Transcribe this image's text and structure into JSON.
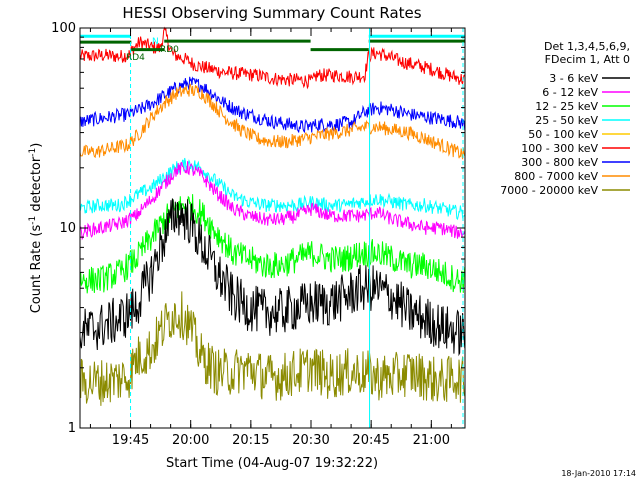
{
  "chart_data": {
    "type": "line",
    "title": "HESSI Observing Summary Count Rates",
    "xlabel": "Start Time (04-Aug-07 19:32:22)",
    "ylabel_main": "Count Rate (s",
    "ylabel_sup1": "-1",
    "ylabel_mid": " detector",
    "ylabel_sup2": "-1",
    "ylabel_end": ")",
    "y_scale": "log",
    "ylim": [
      1,
      100
    ],
    "xlim_minutes": [
      0,
      96
    ],
    "x_ticks": [
      {
        "label": "19:45",
        "minute": 12.6
      },
      {
        "label": "20:00",
        "minute": 27.6
      },
      {
        "label": "20:15",
        "minute": 42.6
      },
      {
        "label": "20:30",
        "minute": 57.6
      },
      {
        "label": "20:45",
        "minute": 72.6
      },
      {
        "label": "21:00",
        "minute": 87.6
      }
    ],
    "y_tick_labels": [
      {
        "label": "1",
        "value": 1
      },
      {
        "label": "10",
        "value": 10
      },
      {
        "label": "100",
        "value": 100
      }
    ],
    "legend": {
      "placement": "right",
      "header": [
        "Det 1,3,4,5,6,9,",
        "FDecim 1, Att 0"
      ],
      "entries": [
        {
          "label": "3 - 6 keV",
          "color": "#000000"
        },
        {
          "label": "6 - 12 keV",
          "color": "#ff00ff"
        },
        {
          "label": "12 - 25 keV",
          "color": "#00ff00"
        },
        {
          "label": "25 - 50 keV",
          "color": "#00ffff"
        },
        {
          "label": "50 - 100 keV",
          "color": "#ffcc00"
        },
        {
          "label": "100 - 300 keV",
          "color": "#ff0000"
        },
        {
          "label": "300 - 800 keV",
          "color": "#0000ff"
        },
        {
          "label": "800 - 7000 keV",
          "color": "#ff8c00"
        },
        {
          "label": "7000 - 20000 keV",
          "color": "#8b8b00"
        }
      ]
    },
    "annotations": {
      "flags": [
        {
          "label": "N",
          "color": "#00ffff"
        },
        {
          "label": "RD0",
          "color": "#006400"
        },
        {
          "label": "RD4",
          "color": "#006400"
        }
      ],
      "timestamp": "18-Jan-2010 17:14"
    },
    "series": [
      {
        "name": "100 - 300 keV",
        "color": "#ff0000",
        "x": [
          0,
          6,
          10,
          12.5,
          13,
          15,
          18,
          20,
          21,
          23,
          26,
          29,
          33,
          36,
          40,
          44,
          48,
          52,
          55,
          58,
          59,
          64,
          68,
          71,
          72,
          74,
          76,
          80,
          84,
          88,
          92,
          96
        ],
        "y": [
          72,
          73,
          72,
          74,
          78,
          85,
          80,
          79,
          96,
          74,
          70,
          65,
          62,
          60,
          59,
          58,
          56,
          55,
          55,
          54,
          58,
          58,
          57,
          58,
          73,
          75,
          73,
          68,
          65,
          62,
          58,
          55
        ]
      },
      {
        "name": "300 - 800 keV",
        "color": "#0000ff",
        "x": [
          0,
          4,
          8,
          12,
          15,
          18,
          21,
          24,
          27,
          30,
          33,
          36,
          40,
          44,
          48,
          52,
          56,
          60,
          64,
          68,
          71,
          74,
          78,
          82,
          86,
          90,
          94,
          96
        ],
        "y": [
          34,
          35,
          36,
          37,
          39,
          42,
          46,
          50,
          53,
          52,
          47,
          42,
          38,
          36,
          34,
          33,
          32,
          33,
          33,
          34,
          38,
          40,
          39,
          37,
          36,
          35,
          34,
          33
        ]
      },
      {
        "name": "800 - 7000 keV",
        "color": "#ff8c00",
        "x": [
          0,
          4,
          8,
          12,
          15,
          18,
          21,
          24,
          27,
          30,
          33,
          36,
          40,
          44,
          48,
          52,
          56,
          60,
          64,
          68,
          71,
          74,
          78,
          82,
          86,
          90,
          94,
          96
        ],
        "y": [
          24,
          24,
          25,
          26,
          30,
          36,
          42,
          47,
          49,
          48,
          42,
          36,
          31,
          28,
          27,
          27,
          28,
          29,
          30,
          31,
          32,
          32,
          31,
          30,
          28,
          26,
          24,
          23
        ]
      },
      {
        "name": "25 - 50 keV",
        "color": "#00ffff",
        "x": [
          0,
          5,
          10,
          14,
          18,
          21,
          24,
          27,
          30,
          34,
          38,
          42,
          46,
          50,
          54,
          58,
          62,
          66,
          70,
          74,
          78,
          82,
          86,
          90,
          94,
          96
        ],
        "y": [
          12.5,
          13,
          13,
          14.5,
          16,
          18,
          20,
          21,
          20,
          17,
          14.5,
          13.5,
          13,
          13,
          13,
          13.5,
          13,
          13,
          13.5,
          14,
          13.5,
          13,
          13,
          12.5,
          12,
          12
        ]
      },
      {
        "name": "6 - 12 keV",
        "color": "#ff00ff",
        "x": [
          0,
          5,
          10,
          14,
          18,
          21,
          24,
          27,
          30,
          34,
          38,
          42,
          46,
          50,
          54,
          58,
          62,
          66,
          70,
          74,
          78,
          82,
          86,
          90,
          94,
          96
        ],
        "y": [
          9.5,
          10,
          10.5,
          11.5,
          14,
          16.5,
          19.5,
          20,
          18.5,
          15,
          12.5,
          11.5,
          11,
          11,
          11.5,
          12.5,
          11.5,
          11.5,
          11.5,
          12,
          11,
          10.5,
          10,
          10,
          9.5,
          9.5
        ]
      },
      {
        "name": "12 - 25 keV",
        "color": "#00ff00",
        "x": [
          0,
          5,
          10,
          14,
          18,
          21,
          24,
          27,
          30,
          34,
          38,
          42,
          46,
          50,
          54,
          58,
          62,
          66,
          70,
          74,
          78,
          82,
          86,
          90,
          94,
          96
        ],
        "y": [
          5.5,
          5.5,
          6,
          7,
          9,
          11,
          12.5,
          13,
          12,
          9.5,
          7.5,
          7,
          6.5,
          6.5,
          7,
          7.5,
          7,
          7,
          7.5,
          7.5,
          7,
          6.5,
          6.5,
          6,
          5.5,
          5.5
        ]
      },
      {
        "name": "3 - 6 keV",
        "color": "#000000",
        "x": [
          0,
          5,
          10,
          14,
          18,
          21,
          24,
          27,
          30,
          34,
          38,
          42,
          46,
          50,
          54,
          58,
          62,
          66,
          70,
          74,
          78,
          82,
          86,
          90,
          94,
          96
        ],
        "y": [
          3,
          3.2,
          3.5,
          4,
          6,
          9,
          12,
          11,
          8.5,
          6,
          4.5,
          4,
          3.8,
          3.8,
          4,
          4.2,
          4.2,
          4.5,
          5,
          5,
          4.5,
          3.8,
          3.5,
          3.2,
          3,
          3
        ]
      },
      {
        "name": "7000 - 20000 keV",
        "color": "#8b8b00",
        "x": [
          0,
          6,
          12,
          14,
          18,
          20,
          22,
          24,
          26,
          28,
          30,
          34,
          38,
          42,
          46,
          50,
          54,
          58,
          62,
          66,
          70,
          74,
          78,
          82,
          86,
          90,
          94,
          96
        ],
        "y": [
          1.7,
          1.7,
          1.8,
          2.2,
          2.5,
          3,
          3.5,
          3.8,
          3.6,
          3,
          2.3,
          1.9,
          1.9,
          2,
          1.8,
          1.8,
          1.9,
          2,
          1.8,
          1.9,
          1.9,
          1.8,
          1.8,
          1.9,
          1.8,
          1.7,
          1.8,
          1.7
        ]
      }
    ],
    "attenuator_bars": [
      {
        "label": "N",
        "color": "#00ffff",
        "x_start": 0,
        "x_end": 12.5,
        "y": 91
      },
      {
        "label": "N",
        "color": "#00ffff",
        "x_start": 72,
        "x_end": 96,
        "y": 91
      },
      {
        "label": "RD4",
        "color": "#006400",
        "x_start": 0,
        "x_end": 12.8,
        "y": 85
      },
      {
        "label": "RD0",
        "color": "#006400",
        "x_start": 12.8,
        "x_end": 21,
        "y": 78
      },
      {
        "label": "RD0",
        "color": "#006400",
        "x_start": 21,
        "x_end": 57.5,
        "y": 86
      },
      {
        "label": "RD0",
        "color": "#006400",
        "x_start": 57.5,
        "x_end": 72,
        "y": 78
      },
      {
        "label": "RD0",
        "color": "#006400",
        "x_start": 72,
        "x_end": 96,
        "y": 86
      }
    ],
    "vertical_markers": [
      {
        "x": 12.6,
        "color": "#00ffff",
        "dashed": true
      },
      {
        "x": 72.2,
        "color": "#00ffff",
        "dashed": false
      },
      {
        "x": 95.5,
        "color": "#00ffff",
        "dashed": true
      }
    ],
    "grid": false
  }
}
